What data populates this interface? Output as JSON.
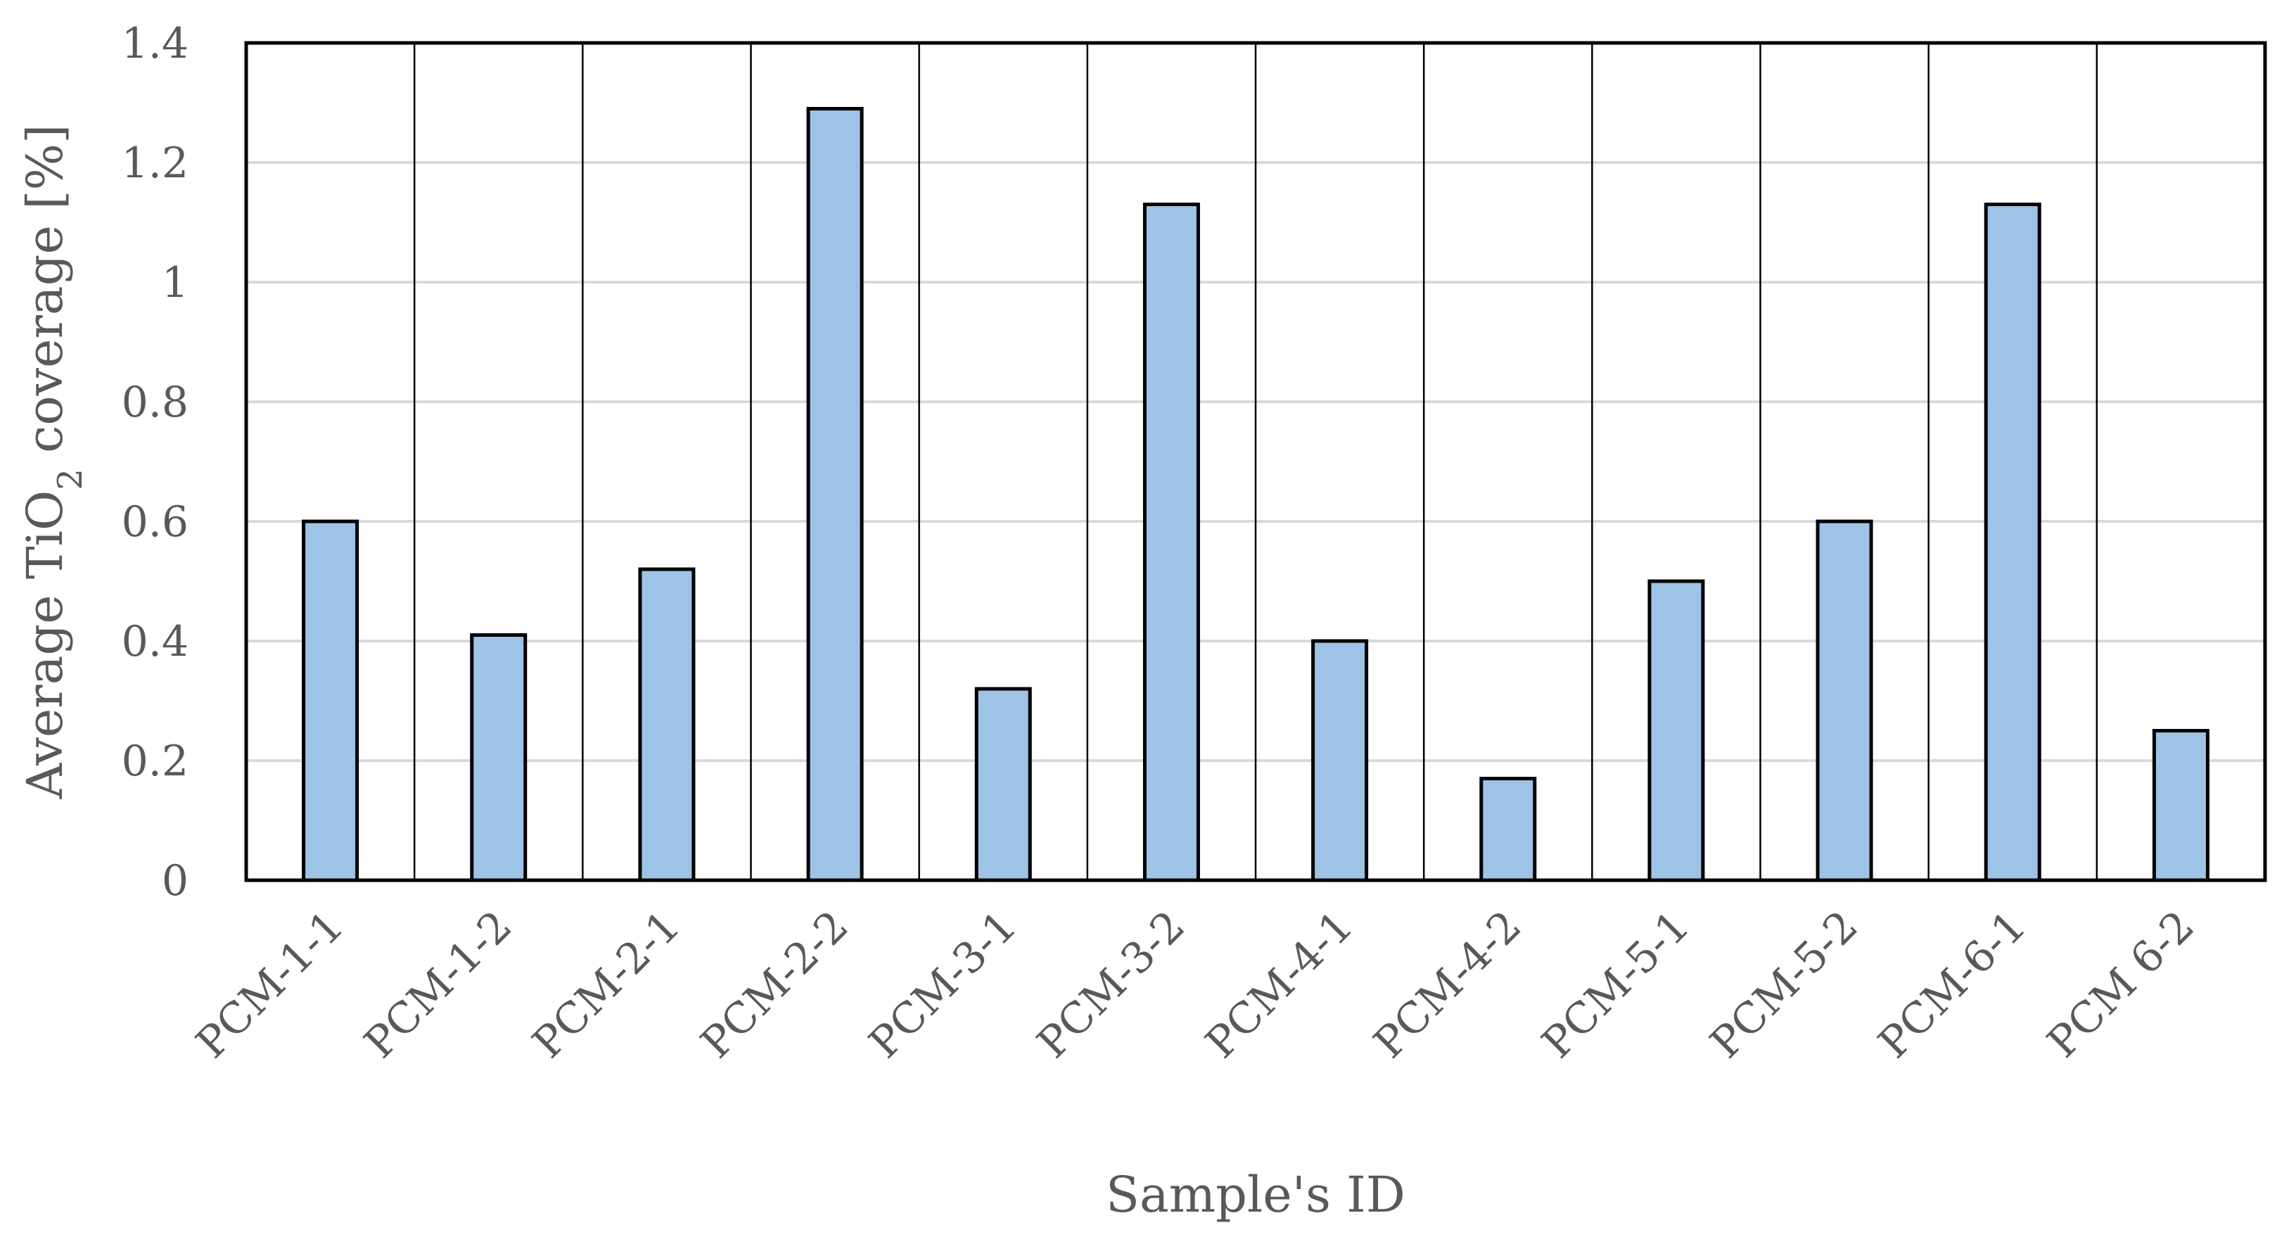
{
  "chart_data": {
    "type": "bar",
    "title": "",
    "categories": [
      "PCM-1-1",
      "PCM-1-2",
      "PCM-2-1",
      "PCM-2-2",
      "PCM-3-1",
      "PCM-3-2",
      "PCM-4-1",
      "PCM-4-2",
      "PCM-5-1",
      "PCM-5-2",
      "PCM-6-1",
      "PCM 6-2"
    ],
    "values": [
      0.6,
      0.41,
      0.52,
      1.29,
      0.32,
      1.13,
      0.4,
      0.17,
      0.5,
      0.6,
      1.13,
      0.25
    ],
    "xlabel": "Sample's ID",
    "ylabel": {
      "prefix": "Average TiO",
      "subscript": "2",
      "suffix": " coverage [%]"
    },
    "ylim": [
      0,
      1.4
    ],
    "yticks": [
      "0",
      "0.2",
      "0.4",
      "0.6",
      "0.8",
      "1",
      "1.2",
      "1.4"
    ],
    "grid": true,
    "legend": "none",
    "colors": {
      "bar_fill": "#9dc3e6",
      "bar_edge": "#000000",
      "grid": "#d9d9d9",
      "text": "#595959"
    }
  }
}
